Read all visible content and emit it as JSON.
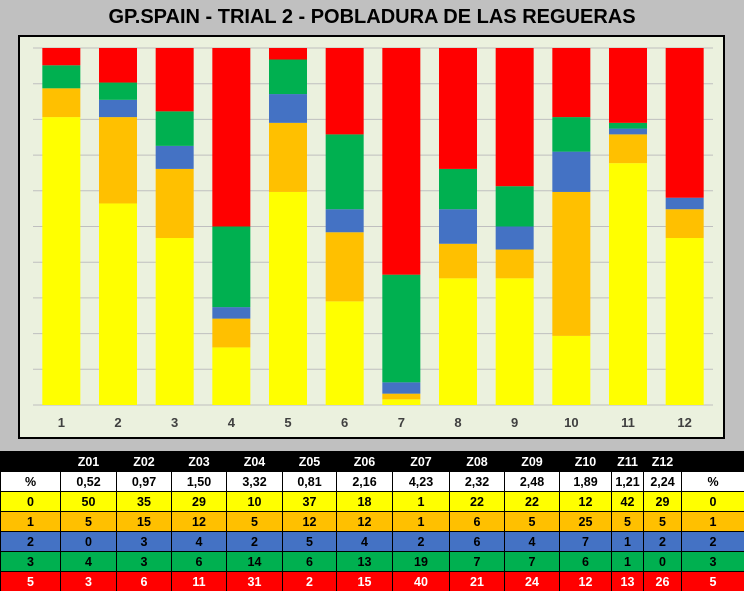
{
  "title": "GP.SPAIN - TRIAL 2  - POBLADURA DE LAS REGUERAS",
  "chart_data": {
    "type": "bar",
    "stacked": true,
    "percent_stacked": true,
    "categories": [
      "1",
      "2",
      "3",
      "4",
      "5",
      "6",
      "7",
      "8",
      "9",
      "10",
      "11",
      "12"
    ],
    "series": [
      {
        "key": "0",
        "color": "#ffff00",
        "values": [
          50,
          35,
          29,
          10,
          37,
          18,
          1,
          22,
          22,
          12,
          42,
          29
        ]
      },
      {
        "key": "1",
        "color": "#ffc000",
        "values": [
          5,
          15,
          12,
          5,
          12,
          12,
          1,
          6,
          5,
          25,
          5,
          5
        ]
      },
      {
        "key": "2",
        "color": "#4472c4",
        "values": [
          0,
          3,
          4,
          2,
          5,
          4,
          2,
          6,
          4,
          7,
          1,
          2
        ]
      },
      {
        "key": "3",
        "color": "#00b050",
        "values": [
          4,
          3,
          6,
          14,
          6,
          13,
          19,
          7,
          7,
          6,
          1,
          0
        ]
      },
      {
        "key": "5",
        "color": "#ff0000",
        "values": [
          3,
          6,
          11,
          31,
          2,
          15,
          40,
          21,
          24,
          12,
          13,
          26
        ]
      }
    ],
    "grid": true,
    "legend": "none"
  },
  "table": {
    "header": [
      "",
      "Z01",
      "Z02",
      "Z03",
      "Z04",
      "Z05",
      "Z06",
      "Z07",
      "Z08",
      "Z09",
      "Z10",
      "Z11",
      "Z12",
      ""
    ],
    "pct_row": [
      "%",
      "0,52",
      "0,97",
      "1,50",
      "3,32",
      "0,81",
      "2,16",
      "4,23",
      "2,32",
      "2,48",
      "1,89",
      "1,21",
      "2,24",
      "%"
    ],
    "rows": [
      {
        "cls": "r0",
        "cells": [
          "0",
          "50",
          "35",
          "29",
          "10",
          "37",
          "18",
          "1",
          "22",
          "22",
          "12",
          "42",
          "29",
          "0"
        ]
      },
      {
        "cls": "r1",
        "cells": [
          "1",
          "5",
          "15",
          "12",
          "5",
          "12",
          "12",
          "1",
          "6",
          "5",
          "25",
          "5",
          "5",
          "1"
        ]
      },
      {
        "cls": "r2",
        "cells": [
          "2",
          "0",
          "3",
          "4",
          "2",
          "5",
          "4",
          "2",
          "6",
          "4",
          "7",
          "1",
          "2",
          "2"
        ]
      },
      {
        "cls": "r3",
        "cells": [
          "3",
          "4",
          "3",
          "6",
          "14",
          "6",
          "13",
          "19",
          "7",
          "7",
          "6",
          "1",
          "0",
          "3"
        ]
      },
      {
        "cls": "r5",
        "cells": [
          "5",
          "3",
          "6",
          "11",
          "31",
          "2",
          "15",
          "40",
          "21",
          "24",
          "12",
          "13",
          "26",
          "5"
        ]
      }
    ]
  }
}
